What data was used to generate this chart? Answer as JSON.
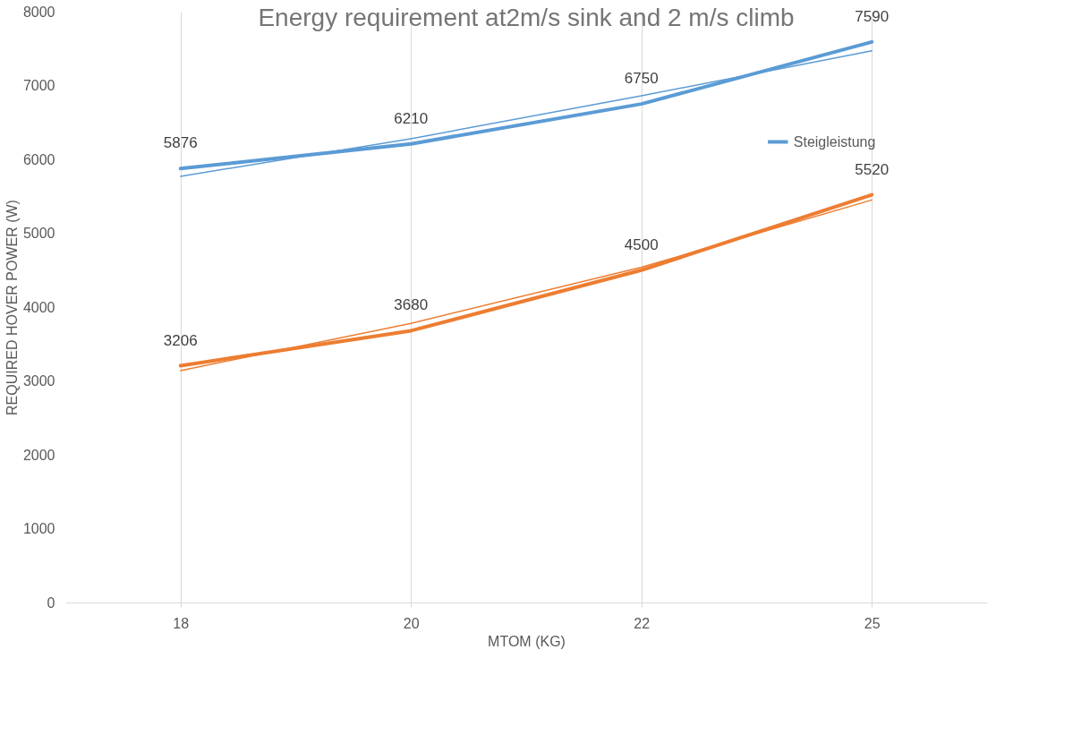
{
  "chart_data": {
    "type": "line",
    "title": "Energy requirement at2m/s sink and 2 m/s climb",
    "xlabel": "MTOM (KG)",
    "ylabel": "REQUIRED HOVER POWER (W)",
    "categories": [
      "18",
      "20",
      "22",
      "25"
    ],
    "ylim": [
      0,
      8000
    ],
    "yticks": [
      0,
      1000,
      2000,
      3000,
      4000,
      5000,
      6000,
      7000,
      8000
    ],
    "grid": "x",
    "legend": "right",
    "marker": "none",
    "line_style": "solid",
    "series": [
      {
        "name": "Steigleistung",
        "color": "#5b9bd5",
        "values": [
          5876,
          6210,
          6750,
          7590
        ],
        "value_labels": [
          "5876",
          "6210",
          "6750",
          "7590"
        ]
      },
      {
        "color": "#ed7d31",
        "values": [
          3206,
          3680,
          4500,
          5520
        ],
        "value_labels": [
          "3206",
          "3680",
          "4500",
          "5520"
        ]
      },
      {
        "type": "line",
        "color": "#5b9bd5",
        "values": [
          5770,
          6280,
          6860,
          7470
        ]
      },
      {
        "type": "line",
        "color": "#ed7d31",
        "values": [
          3140,
          3780,
          4540,
          5450
        ]
      }
    ]
  }
}
